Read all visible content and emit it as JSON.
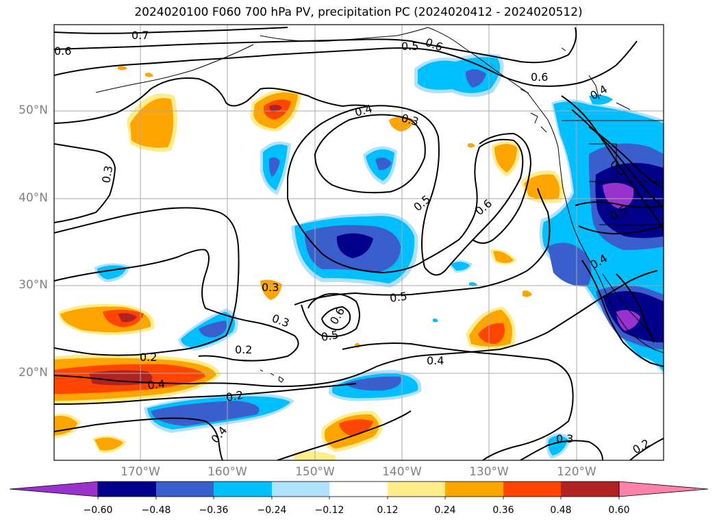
{
  "title": "2024020100 F060 700 hPa PV, precipitation PC (2024020412 - 2024020512)",
  "lat_ticks": [
    "50°N",
    "40°N",
    "30°N",
    "20°N"
  ],
  "lon_ticks": [
    "170°W",
    "160°W",
    "150°W",
    "140°W",
    "130°W",
    "120°W"
  ],
  "contour_labels": [
    "0.7",
    "0.6",
    "0.5",
    "0.6",
    "0.6",
    "0.4",
    "0.4",
    "0.3",
    "0.3",
    "0.3",
    "0.5",
    "0.6",
    "0.5",
    "0.5",
    "0.4",
    "0.2",
    "0.4",
    "0.5",
    "0.3",
    "0.2",
    "0.5",
    "0.6",
    "0.4",
    "0.2",
    "0.4",
    "0.3",
    "0.2",
    "0.3",
    "0.2",
    "0.6",
    "0.6",
    "0.5",
    "0.3",
    "0.5",
    "0.6",
    "0.6",
    "0.4",
    "0.5",
    "0.5",
    "0.6",
    "0.5",
    "0.3",
    "0.3",
    "0.4",
    "0.6",
    "0.2",
    "0.3",
    "0.4",
    "0.4",
    "0.6",
    "0.6",
    "0.6",
    "0.4",
    "0.4",
    "0.2"
  ],
  "colorbar": {
    "ticks": [
      "−0.60",
      "−0.48",
      "−0.36",
      "−0.24",
      "−0.12",
      "0.12",
      "0.24",
      "0.36",
      "0.48",
      "0.60"
    ],
    "colors": [
      "#9932cc",
      "#00008b",
      "#3a5fcd",
      "#00bfff",
      "#b0e2ff",
      "#ffffff",
      "#ffec8b",
      "#ffa500",
      "#ff4500",
      "#b22222",
      "#ff82ab"
    ]
  }
}
